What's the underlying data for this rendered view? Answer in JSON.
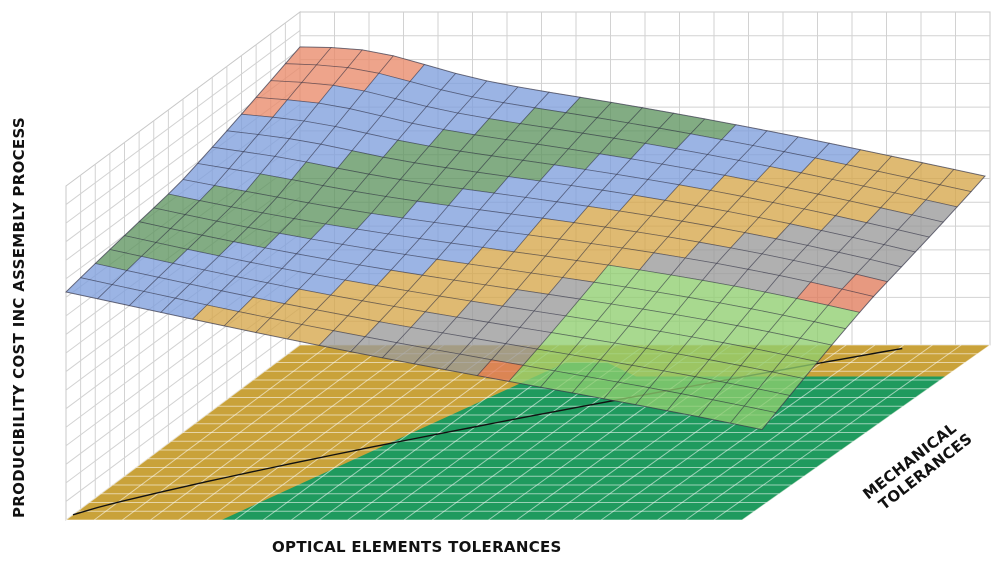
{
  "chart_data": {
    "type": "surface",
    "xlabel": "OPTICAL ELEMENTS TOLERANCES",
    "ylabel_lines": [
      "MECHANICAL",
      "TOLERANCES"
    ],
    "zlabel": "PRODUCIBILITY COST INC ASSEMBLY PROCESS",
    "grid": true,
    "band_colors": [
      "#e98a6a",
      "#7f9fdd",
      "#5f9560",
      "#7f9fdd",
      "#d6a64a",
      "#9a9a9a",
      "#e07c5c",
      "#7f9fdd",
      "#8fce70"
    ],
    "floor_colors": {
      "region_a": "#c9a23a",
      "region_b": "#1f9a5e"
    }
  }
}
